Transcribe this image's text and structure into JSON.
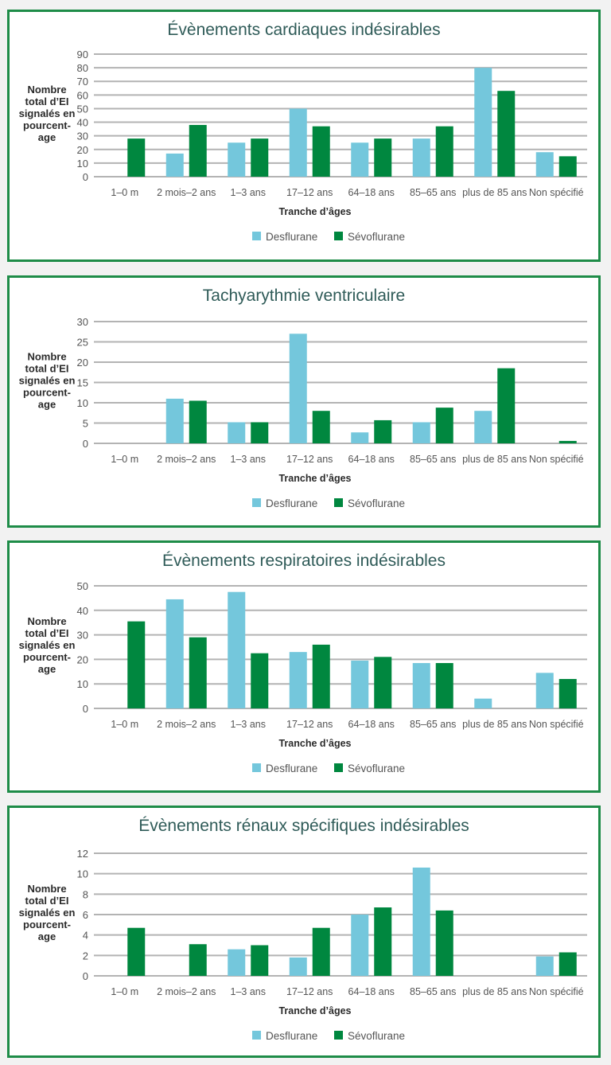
{
  "colors": {
    "desflurane": "#74c7dc",
    "sevoflurane": "#00873f",
    "border": "#1e8c48",
    "title": "#2f5b58"
  },
  "chart_data": [
    {
      "type": "bar",
      "title": "Évènements cardiaques indésirables",
      "ylabel_lines": [
        "Nombre",
        "total d’EI",
        "signalés en",
        "pourcent-",
        "age"
      ],
      "xlabel": "Tranche d’âges",
      "categories": [
        "1–0 m",
        "2 mois–2 ans",
        "1–3 ans",
        "17–12 ans",
        "64–18 ans",
        "85–65 ans",
        "plus de 85 ans",
        "Non spécifié"
      ],
      "series": [
        {
          "name": "Desflurane",
          "values": [
            0,
            17,
            25,
            50,
            25,
            28,
            80,
            18
          ]
        },
        {
          "name": "Sévoflurane",
          "values": [
            28,
            38,
            28,
            37,
            28,
            37,
            63,
            15
          ]
        }
      ],
      "ylim": [
        0,
        90
      ],
      "yticks": [
        0,
        10,
        20,
        30,
        40,
        50,
        60,
        70,
        80,
        90
      ],
      "grid": true,
      "legend": "bottom-center"
    },
    {
      "type": "bar",
      "title": "Tachyarythmie ventriculaire",
      "ylabel_lines": [
        "Nombre",
        "total d’EI",
        "signalés en",
        "pourcent-",
        "age"
      ],
      "xlabel": "Tranche d’âges",
      "categories": [
        "1–0 m",
        "2 mois–2 ans",
        "1–3 ans",
        "17–12 ans",
        "64–18 ans",
        "85–65 ans",
        "plus de 85 ans",
        "Non spécifié"
      ],
      "series": [
        {
          "name": "Desflurane",
          "values": [
            0,
            11,
            5.2,
            27,
            2.7,
            5.2,
            8,
            0
          ]
        },
        {
          "name": "Sévoflurane",
          "values": [
            0,
            10.5,
            5.2,
            8,
            5.7,
            8.8,
            18.5,
            0.6
          ]
        }
      ],
      "ylim": [
        0,
        30
      ],
      "yticks": [
        0,
        5,
        10,
        15,
        20,
        25,
        30
      ],
      "grid": true,
      "legend": "bottom-center"
    },
    {
      "type": "bar",
      "title": "Évènements respiratoires indésirables",
      "ylabel_lines": [
        "Nombre",
        "total d’EI",
        "signalés en",
        "pourcent-",
        "age"
      ],
      "xlabel": "Tranche d’âges",
      "categories": [
        "1–0 m",
        "2 mois–2 ans",
        "1–3 ans",
        "17–12 ans",
        "64–18 ans",
        "85–65 ans",
        "plus de 85 ans",
        "Non spécifié"
      ],
      "series": [
        {
          "name": "Desflurane",
          "values": [
            0,
            44.5,
            47.5,
            23,
            19.5,
            18.5,
            4,
            14.5
          ]
        },
        {
          "name": "Sévoflurane",
          "values": [
            35.5,
            29,
            22.5,
            26,
            21,
            18.5,
            0,
            12
          ]
        }
      ],
      "ylim": [
        0,
        50
      ],
      "yticks": [
        0,
        10,
        20,
        30,
        40,
        50
      ],
      "grid": true,
      "legend": "bottom-center"
    },
    {
      "type": "bar",
      "title": "Évènements rénaux spécifiques indésirables",
      "ylabel_lines": [
        "Nombre",
        "total d’EI",
        "signalés en",
        "pourcent-",
        "age"
      ],
      "xlabel": "Tranche d’âges",
      "categories": [
        "1–0 m",
        "2 mois–2 ans",
        "1–3 ans",
        "17–12 ans",
        "64–18 ans",
        "85–65 ans",
        "plus de 85 ans",
        "Non spécifié"
      ],
      "series": [
        {
          "name": "Desflurane",
          "values": [
            0,
            0,
            2.6,
            1.8,
            6.0,
            10.6,
            0,
            1.9
          ]
        },
        {
          "name": "Sévoflurane",
          "values": [
            4.7,
            3.1,
            3.0,
            4.7,
            6.7,
            6.4,
            0,
            2.3
          ]
        }
      ],
      "ylim": [
        0,
        12
      ],
      "yticks": [
        0,
        2,
        4,
        6,
        8,
        10,
        12
      ],
      "grid": true,
      "legend": "bottom-center"
    }
  ]
}
